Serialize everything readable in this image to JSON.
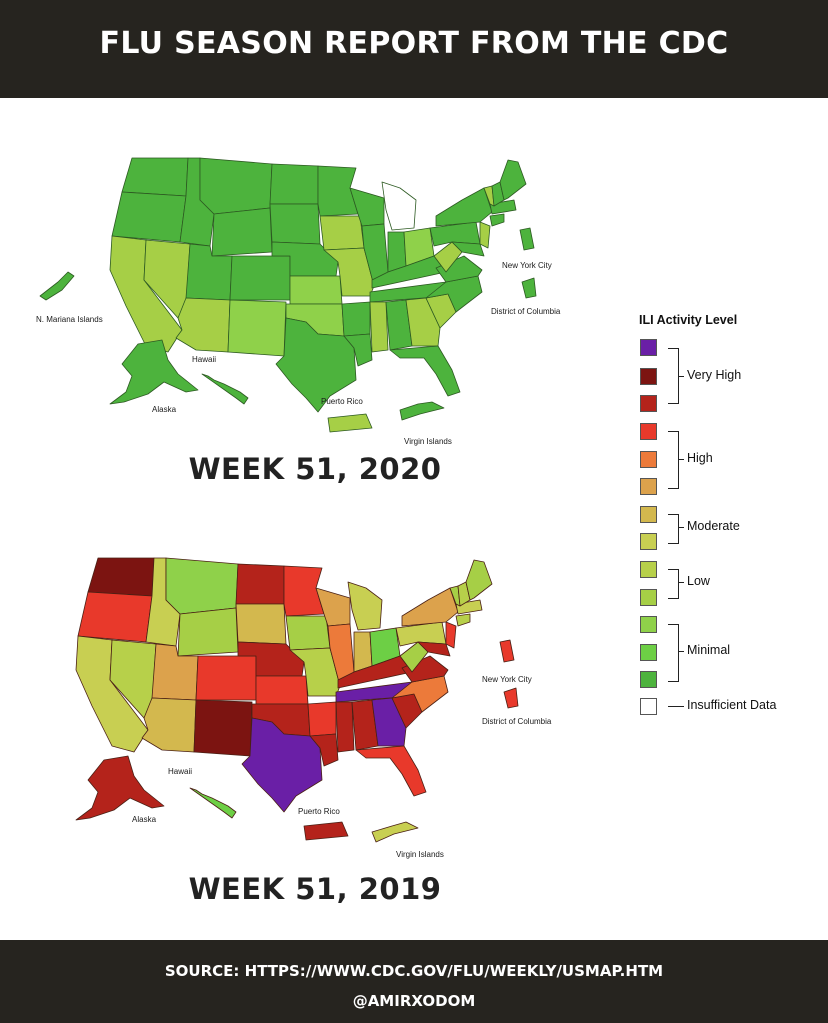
{
  "header": {
    "title": "FLU SEASON REPORT FROM THE CDC"
  },
  "colors": {
    "very_high_3": "#6a1fa6",
    "very_high_2": "#7c1411",
    "very_high_1": "#b4231b",
    "high_3": "#e8392b",
    "high_2": "#ec7a3a",
    "high_1": "#dca24c",
    "moderate_2": "#d3b84e",
    "moderate_1": "#c8cf52",
    "low_2": "#b7d04a",
    "low_1": "#a6cf46",
    "minimal_3": "#8fd14a",
    "minimal_2": "#6dcf45",
    "minimal_1": "#4db33d",
    "insufficient": "#ffffff"
  },
  "maps": [
    {
      "caption": "WEEK 51,  2020",
      "labels": {
        "mariana": "N. Mariana Islands",
        "hawaii": "Hawaii",
        "alaska": "Alaska",
        "puerto_rico": "Puerto Rico",
        "virgin_islands": "Virgin Islands",
        "new_york_city": "New York City",
        "dc": "District of Columbia"
      }
    },
    {
      "caption": "WEEK 51,  2019",
      "labels": {
        "hawaii": "Hawaii",
        "alaska": "Alaska",
        "puerto_rico": "Puerto Rico",
        "virgin_islands": "Virgin Islands",
        "new_york_city": "New York City",
        "dc": "District of Columbia"
      }
    }
  ],
  "legend": {
    "title": "ILI Activity Level",
    "categories": [
      "Very High",
      "High",
      "Moderate",
      "Low",
      "Minimal",
      "Insufficient Data"
    ]
  },
  "footer": {
    "source": "SOURCE: HTTPS://WWW.CDC.GOV/FLU/WEEKLY/USMAP.HTM",
    "handle": "@AMIRXODOM"
  }
}
